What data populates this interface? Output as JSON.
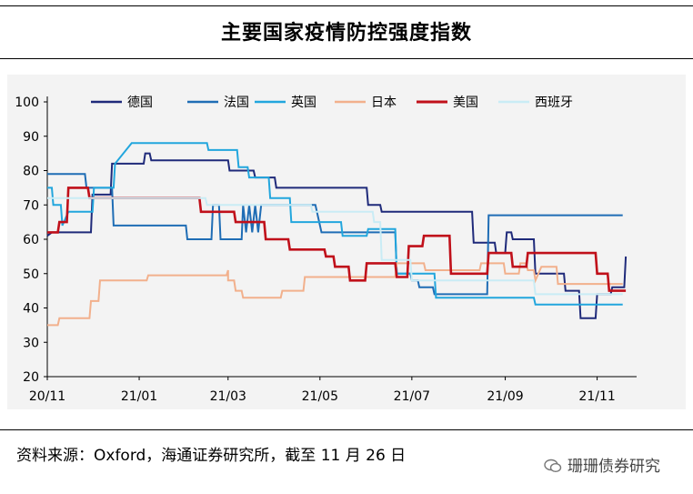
{
  "title": "主要国家疫情防控强度指数",
  "source_note": "资料来源：Oxford，海通证券研究所，截至 11 月 26 日",
  "watermark": "珊珊债券研究",
  "chart_data": {
    "type": "line",
    "ylim": [
      20,
      100
    ],
    "yticks": [
      20,
      30,
      40,
      50,
      60,
      70,
      80,
      90,
      100
    ],
    "xlim": [
      "2020-11-01",
      "2021-11-26"
    ],
    "xticks": [
      {
        "date": "2020-11-01",
        "label": "20/11"
      },
      {
        "date": "2021-01-01",
        "label": "21/01"
      },
      {
        "date": "2021-03-01",
        "label": "21/03"
      },
      {
        "date": "2021-05-01",
        "label": "21/05"
      },
      {
        "date": "2021-07-01",
        "label": "21/07"
      },
      {
        "date": "2021-09-01",
        "label": "21/09"
      },
      {
        "date": "2021-11-01",
        "label": "21/11"
      }
    ],
    "legend_position": "top",
    "series": [
      {
        "name": "德国",
        "color": "#1f2a7a",
        "points": [
          [
            "2020-11-01",
            61
          ],
          [
            "2020-11-04",
            62
          ],
          [
            "2020-11-30",
            62
          ],
          [
            "2020-12-01",
            73
          ],
          [
            "2020-12-13",
            73
          ],
          [
            "2020-12-14",
            82
          ],
          [
            "2021-01-04",
            82
          ],
          [
            "2021-01-05",
            85
          ],
          [
            "2021-01-08",
            85
          ],
          [
            "2021-01-09",
            83
          ],
          [
            "2021-03-01",
            83
          ],
          [
            "2021-03-02",
            80
          ],
          [
            "2021-03-18",
            80
          ],
          [
            "2021-03-19",
            78
          ],
          [
            "2021-04-01",
            78
          ],
          [
            "2021-04-02",
            75
          ],
          [
            "2021-06-01",
            75
          ],
          [
            "2021-06-02",
            70
          ],
          [
            "2021-06-10",
            70
          ],
          [
            "2021-06-11",
            68
          ],
          [
            "2021-08-10",
            68
          ],
          [
            "2021-08-11",
            59
          ],
          [
            "2021-08-25",
            59
          ],
          [
            "2021-08-26",
            56
          ],
          [
            "2021-09-01",
            56
          ],
          [
            "2021-09-02",
            62
          ],
          [
            "2021-09-05",
            62
          ],
          [
            "2021-09-06",
            60
          ],
          [
            "2021-09-20",
            60
          ],
          [
            "2021-09-21",
            50
          ],
          [
            "2021-10-10",
            50
          ],
          [
            "2021-10-11",
            45
          ],
          [
            "2021-10-20",
            45
          ],
          [
            "2021-10-21",
            37
          ],
          [
            "2021-10-31",
            37
          ],
          [
            "2021-11-01",
            44
          ],
          [
            "2021-11-10",
            44
          ],
          [
            "2021-11-11",
            46
          ],
          [
            "2021-11-19",
            46
          ],
          [
            "2021-11-20",
            55
          ]
        ]
      },
      {
        "name": "法国",
        "color": "#1f6db5",
        "points": [
          [
            "2020-11-01",
            79
          ],
          [
            "2020-11-26",
            79
          ],
          [
            "2020-11-27",
            75
          ],
          [
            "2020-12-14",
            75
          ],
          [
            "2020-12-15",
            64
          ],
          [
            "2021-02-01",
            64
          ],
          [
            "2021-02-02",
            60
          ],
          [
            "2021-02-18",
            60
          ],
          [
            "2021-02-19",
            70
          ],
          [
            "2021-02-23",
            70
          ],
          [
            "2021-02-24",
            60
          ],
          [
            "2021-03-10",
            60
          ],
          [
            "2021-03-11",
            70
          ],
          [
            "2021-03-13",
            62
          ],
          [
            "2021-03-15",
            70
          ],
          [
            "2021-03-17",
            62
          ],
          [
            "2021-03-19",
            70
          ],
          [
            "2021-03-21",
            62
          ],
          [
            "2021-03-23",
            70
          ],
          [
            "2021-03-25",
            70
          ],
          [
            "2021-04-28",
            70
          ],
          [
            "2021-05-02",
            62
          ],
          [
            "2021-06-20",
            62
          ],
          [
            "2021-06-21",
            50
          ],
          [
            "2021-06-30",
            50
          ],
          [
            "2021-07-01",
            48
          ],
          [
            "2021-07-05",
            48
          ],
          [
            "2021-07-06",
            46
          ],
          [
            "2021-07-15",
            46
          ],
          [
            "2021-07-16",
            44
          ],
          [
            "2021-08-20",
            44
          ],
          [
            "2021-08-21",
            67
          ],
          [
            "2021-11-18",
            67
          ]
        ]
      },
      {
        "name": "英国",
        "color": "#22a6dd",
        "points": [
          [
            "2020-11-01",
            75
          ],
          [
            "2020-11-04",
            75
          ],
          [
            "2020-11-05",
            70
          ],
          [
            "2020-11-10",
            70
          ],
          [
            "2020-11-11",
            64
          ],
          [
            "2020-11-15",
            68
          ],
          [
            "2020-12-01",
            68
          ],
          [
            "2020-12-02",
            75
          ],
          [
            "2020-12-15",
            75
          ],
          [
            "2020-12-16",
            82
          ],
          [
            "2020-12-27",
            88
          ],
          [
            "2021-02-15",
            88
          ],
          [
            "2021-02-16",
            86
          ],
          [
            "2021-03-07",
            86
          ],
          [
            "2021-03-08",
            81
          ],
          [
            "2021-03-14",
            81
          ],
          [
            "2021-03-15",
            78
          ],
          [
            "2021-03-28",
            78
          ],
          [
            "2021-03-29",
            72
          ],
          [
            "2021-04-11",
            72
          ],
          [
            "2021-04-12",
            65
          ],
          [
            "2021-05-15",
            65
          ],
          [
            "2021-05-16",
            61
          ],
          [
            "2021-06-01",
            61
          ],
          [
            "2021-06-02",
            63
          ],
          [
            "2021-06-20",
            63
          ],
          [
            "2021-06-21",
            50
          ],
          [
            "2021-07-16",
            50
          ],
          [
            "2021-07-17",
            43
          ],
          [
            "2021-09-20",
            43
          ],
          [
            "2021-09-21",
            41
          ],
          [
            "2021-11-18",
            41
          ]
        ]
      },
      {
        "name": "日本",
        "color": "#f2b08c",
        "points": [
          [
            "2020-11-01",
            35
          ],
          [
            "2020-11-08",
            35
          ],
          [
            "2020-11-09",
            37
          ],
          [
            "2020-11-29",
            37
          ],
          [
            "2020-11-30",
            42
          ],
          [
            "2020-12-05",
            42
          ],
          [
            "2020-12-06",
            48
          ],
          [
            "2021-01-06",
            48
          ],
          [
            "2021-01-07",
            49.5
          ],
          [
            "2021-02-28",
            49.5
          ],
          [
            "2021-02-29",
            51
          ],
          [
            "2021-03-01",
            48
          ],
          [
            "2021-03-05",
            48
          ],
          [
            "2021-03-06",
            45
          ],
          [
            "2021-03-10",
            45
          ],
          [
            "2021-03-11",
            43
          ],
          [
            "2021-04-05",
            43
          ],
          [
            "2021-04-06",
            45
          ],
          [
            "2021-04-20",
            45
          ],
          [
            "2021-04-21",
            49
          ],
          [
            "2021-06-20",
            49
          ],
          [
            "2021-06-21",
            53
          ],
          [
            "2021-07-09",
            53
          ],
          [
            "2021-07-10",
            51
          ],
          [
            "2021-08-15",
            51
          ],
          [
            "2021-08-16",
            53
          ],
          [
            "2021-08-31",
            53
          ],
          [
            "2021-09-01",
            50
          ],
          [
            "2021-09-10",
            50
          ],
          [
            "2021-09-11",
            53
          ],
          [
            "2021-09-15",
            53
          ],
          [
            "2021-09-16",
            51
          ],
          [
            "2021-09-20",
            51
          ],
          [
            "2021-09-21",
            48
          ],
          [
            "2021-09-25",
            52
          ],
          [
            "2021-10-05",
            52
          ],
          [
            "2021-10-06",
            47
          ],
          [
            "2021-11-18",
            47
          ]
        ]
      },
      {
        "name": "美国",
        "color": "#c0101a",
        "points": [
          [
            "2020-11-01",
            62
          ],
          [
            "2020-11-08",
            62
          ],
          [
            "2020-11-09",
            65
          ],
          [
            "2020-11-14",
            65
          ],
          [
            "2020-11-15",
            75
          ],
          [
            "2020-11-28",
            75
          ],
          [
            "2020-11-29",
            72
          ],
          [
            "2021-02-10",
            72
          ],
          [
            "2021-02-11",
            68
          ],
          [
            "2021-03-05",
            68
          ],
          [
            "2021-03-06",
            65
          ],
          [
            "2021-03-25",
            65
          ],
          [
            "2021-03-26",
            60
          ],
          [
            "2021-04-10",
            60
          ],
          [
            "2021-04-11",
            57
          ],
          [
            "2021-05-04",
            57
          ],
          [
            "2021-05-05",
            55
          ],
          [
            "2021-05-10",
            55
          ],
          [
            "2021-05-11",
            52
          ],
          [
            "2021-05-20",
            52
          ],
          [
            "2021-05-21",
            48
          ],
          [
            "2021-05-31",
            48
          ],
          [
            "2021-06-01",
            53
          ],
          [
            "2021-06-20",
            53
          ],
          [
            "2021-06-21",
            49
          ],
          [
            "2021-06-28",
            49
          ],
          [
            "2021-06-29",
            58
          ],
          [
            "2021-07-08",
            58
          ],
          [
            "2021-07-09",
            61
          ],
          [
            "2021-07-26",
            61
          ],
          [
            "2021-07-27",
            50
          ],
          [
            "2021-08-20",
            50
          ],
          [
            "2021-08-21",
            56
          ],
          [
            "2021-09-05",
            56
          ],
          [
            "2021-09-06",
            52
          ],
          [
            "2021-09-15",
            52
          ],
          [
            "2021-09-16",
            56
          ],
          [
            "2021-10-31",
            56
          ],
          [
            "2021-11-01",
            50
          ],
          [
            "2021-11-08",
            50
          ],
          [
            "2021-11-09",
            45
          ],
          [
            "2021-11-20",
            45
          ]
        ]
      },
      {
        "name": "西班牙",
        "color": "#c9ecf5",
        "points": [
          [
            "2020-11-01",
            72
          ],
          [
            "2021-02-14",
            72
          ],
          [
            "2021-02-15",
            70
          ],
          [
            "2021-04-25",
            70
          ],
          [
            "2021-04-26",
            68
          ],
          [
            "2021-06-05",
            68
          ],
          [
            "2021-06-06",
            65
          ],
          [
            "2021-06-10",
            65
          ],
          [
            "2021-06-11",
            54
          ],
          [
            "2021-06-30",
            54
          ],
          [
            "2021-07-01",
            48
          ],
          [
            "2021-09-20",
            48
          ],
          [
            "2021-09-21",
            44
          ],
          [
            "2021-11-18",
            44
          ]
        ]
      }
    ]
  }
}
